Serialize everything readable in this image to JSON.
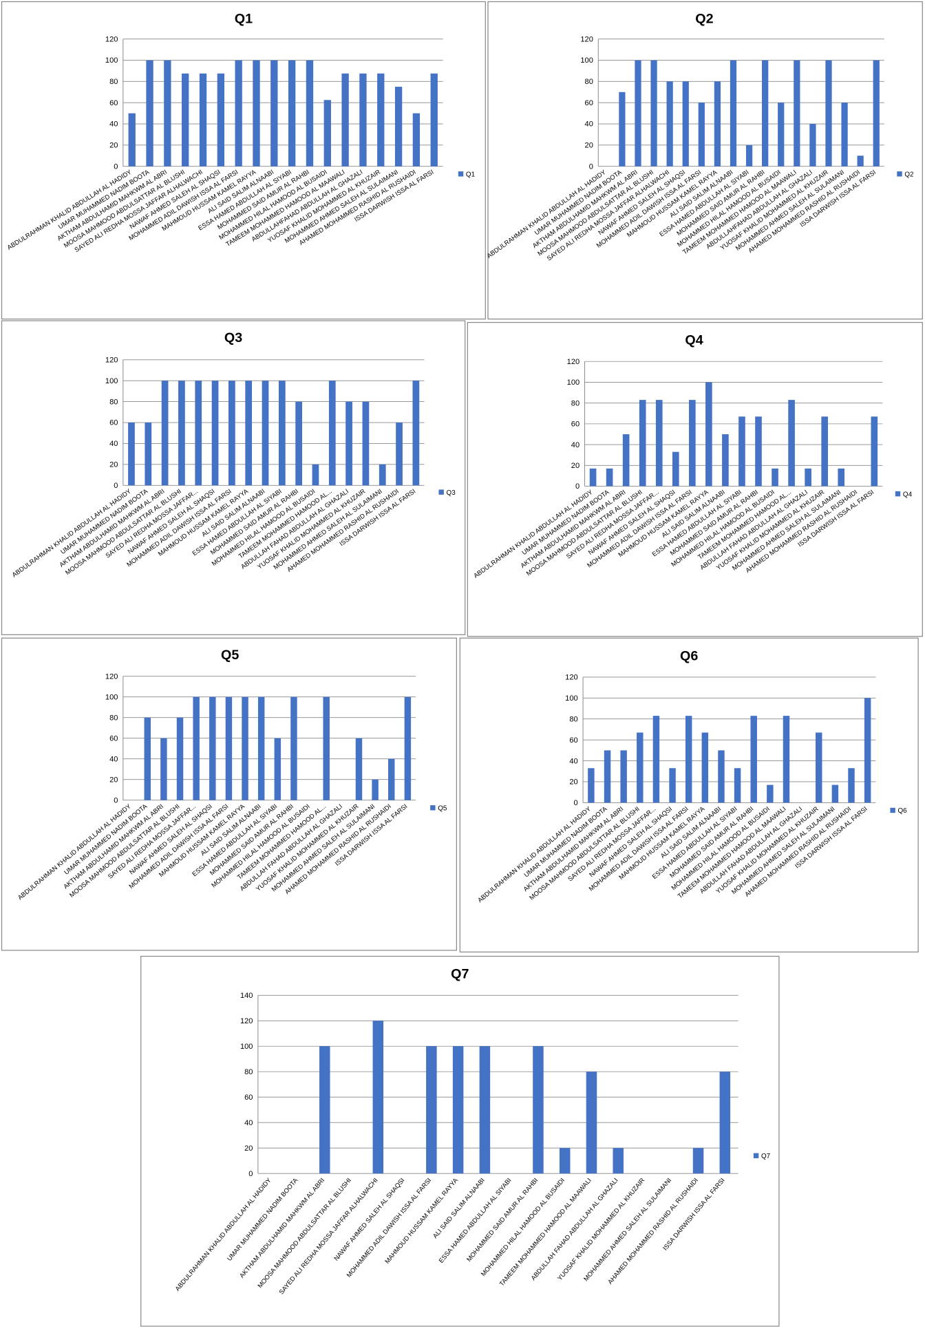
{
  "chart_data": [
    {
      "type": "bar",
      "title": "Q1",
      "categories": [
        "ABDULRAHMAN KHALID ABDULLAH AL HADIDY",
        "UMAR MUHAMMED NADIM BOOTA",
        "AKTHAM ABDULHAMID MAHKWM AL ABRI",
        "MOOSA MAHMOOD ABDULSATTAR AL BLUSHI",
        "SAYED ALI REDHA MOSSA JAFFAR ALHALWACHI",
        "NAWAF AHMED SALEH AL SHAQSI",
        "MOHAMMED ADIL DAWISH ISSA AL FARSI",
        "MAHMOUD HUSSAM KAMEL RAYYA",
        "ALI SAID SALIM ALNAABI",
        "ESSA HAMED ABDULLAH AL SIYABI",
        "MOHAMMED SAID AMUR AL RAHBI",
        "MOHAMMED HILAL HAMOOD AL BUSAIDI",
        "TAMEEM MOHAMMED HAMOOD AL MAAWALI",
        "ABDULLAHFAHAD ABDULLAH AL GHAZALI",
        "YUOSAF KHALID MOHAMMED AL KHUZAIR",
        "MOHAMMED AHMED SALEH AL SULAIMANI",
        "AHAMED MOHAMMED RASHID AL RUSHAIDI",
        "ISSA DARWISH ISSA AL FARSI"
      ],
      "series": [
        {
          "name": "Q1",
          "color": "#4472c4",
          "values": [
            50,
            100,
            100,
            87.5,
            87.5,
            87.5,
            100,
            100,
            100,
            100,
            100,
            62.5,
            87.5,
            87.5,
            87.5,
            75,
            50,
            87.5
          ]
        }
      ],
      "ylim": [
        0,
        120
      ],
      "yticks": [
        0,
        20,
        40,
        60,
        80,
        100,
        120
      ],
      "legend": "right"
    },
    {
      "type": "bar",
      "title": "Q2",
      "categories": [
        "ABDULRAHMAN KHALID ABDULLAH AL HADIDY",
        "UMAR MUHAMMED NADIM BOOTA",
        "AKTHAM ABDULHAMID MAHKWM AL ABRI",
        "MOOSA MAHMOOD ABDULSATTAR AL BLUSHI",
        "SAYED ALI REDHA MOSSA JAFFAR ALHALWACHI",
        "NAWAF AHMED SALEH AL SHAQSI",
        "MOHAMMED ADIL DAWISH ISSA AL FARSI",
        "MAHMOUD HUSSAM KAMEL RAYYA",
        "ALI SAID SALIM ALNAABI",
        "ESSA HAMED ABDULLAH AL SIYABI",
        "MOHAMMED SAID AMUR AL RAHBI",
        "MOHAMMED HILAL HAMOOD AL BUSAIDI",
        "TAMEEM MOHAMMED HAMOOD AL MAAWALI",
        "ABDULLAHFAHAD ABDULLAH AL GHAZALI",
        "YUOSAF KHALID MOHAMMED AL KHUZAIR",
        "MOHAMMED AHMED SALEH AL SULAIMANI",
        "AHAMED MOHAMMED RASHID AL RUSHAIDI",
        "ISSA DARWISH ISSA AL FARSI"
      ],
      "series": [
        {
          "name": "Q2",
          "color": "#4472c4",
          "values": [
            0,
            70,
            100,
            100,
            80,
            80,
            60,
            80,
            100,
            20,
            100,
            60,
            100,
            40,
            100,
            60,
            10,
            100
          ]
        }
      ],
      "ylim": [
        0,
        120
      ],
      "yticks": [
        0,
        20,
        40,
        60,
        80,
        100,
        120
      ],
      "legend": "right"
    },
    {
      "type": "bar",
      "title": "Q3",
      "categories": [
        "ABDULRAHMAN KHALID ABDULLAH AL HADIDY",
        "UMAR MUHAMMED NADIM BOOTA",
        "AKTHAM ABDULHAMID MAHKWM AL ABRI",
        "MOOSA MAHMOOD ABDULSATTAR AL BLUSHI",
        "SAYED ALI REDHA MOSSA JAFFAR...",
        "NAWAF AHMED SALEH AL SHAQSI",
        "MOHAMMED ADIL DAWISH ISSA AL FARSI",
        "MAHMOUD HUSSAM KAMEL RAYYA",
        "ALI SAID SALIM ALNAABI",
        "ESSA HAMED ABDULLAH AL SIYABI",
        "MOHAMMED SAID AMUR AL RAHBI",
        "MOHAMMED HILAL HAMOOD AL BUSAIDI",
        "TAMEEM MOHAMMED HAMOOD AL...",
        "ABDULLAH FAHAD ABDULLAH AL GHAZALI",
        "YUOSAF KHALID MOHAMMED AL KHUZAIR",
        "MOHAMMED AHMED SALEH AL SULAIMANI",
        "AHAMED MOHAMMED RASHID AL RUSHAIDI",
        "ISSA DARWISH ISSA AL FARSI"
      ],
      "series": [
        {
          "name": "Q3",
          "color": "#4472c4",
          "values": [
            60,
            60,
            100,
            100,
            100,
            100,
            100,
            100,
            100,
            100,
            80,
            20,
            100,
            80,
            80,
            20,
            60,
            100
          ]
        }
      ],
      "ylim": [
        0,
        120
      ],
      "yticks": [
        0,
        20,
        40,
        60,
        80,
        100,
        120
      ],
      "legend": "right"
    },
    {
      "type": "bar",
      "title": "Q4",
      "categories": [
        "ABDULRAHMAN KHALID ABDULLAH AL HADIDY",
        "UMAR MUHAMMED NADIM BOOTA",
        "AKTHAM ABDULHAMID MAHKWM AL ABRI",
        "MOOSA MAHMOOD ABDULSATTAR AL BLUSHI",
        "SAYED ALI REDHA MOSSA JAFFAR...",
        "NAWAF AHMED SALEH AL SHAQSI",
        "MOHAMMED ADIL DAWISH ISSA AL FARSI",
        "MAHMOUD HUSSAM KAMEL RAYYA",
        "ALI SAID SALIM ALNAABI",
        "ESSA HAMED ABDULLAH AL SIYABI",
        "MOHAMMED SAID AMUR AL RAHBI",
        "MOHAMMED HILAL HAMOOD AL BUSAIDI",
        "TAMEEM MOHAMMED HAMOOD AL...",
        "ABDULLAH FAHAD ABDULLAH AL GHAZALI",
        "YUOSAF KHALID MOHAMMED AL KHUZAIR",
        "MOHAMMED AHMED SALEH AL SULAIMANI",
        "AHAMED MOHAMMED RASHID AL RUSHAIDI",
        "ISSA DARWISH ISSA AL FARSI"
      ],
      "series": [
        {
          "name": "Q4",
          "color": "#4472c4",
          "values": [
            17,
            17,
            50,
            83,
            83,
            33,
            83,
            100,
            50,
            67,
            67,
            17,
            83,
            17,
            67,
            17,
            0,
            67
          ]
        }
      ],
      "ylim": [
        0,
        120
      ],
      "yticks": [
        0,
        20,
        40,
        60,
        80,
        100,
        120
      ],
      "legend": "right"
    },
    {
      "type": "bar",
      "title": "Q5",
      "categories": [
        "ABDULRAHMAN KHALID ABDULLAH AL HADIDY",
        "UMAR MUHAMMED NADIM BOOTA",
        "AKTHAM ABDULHAMID MAHKWM AL ABRI",
        "MOOSA MAHMOOD ABDULSATTAR AL BLUSHI",
        "SAYED ALI REDHA MOSSA JAFFAR...",
        "NAWAF AHMED SALEH AL SHAQSI",
        "MOHAMMED ADIL DAWISH ISSA AL FARSI",
        "MAHMOUD HUSSAM KAMEL RAYYA",
        "ALI SAID SALIM ALNAABI",
        "ESSA HAMED ABDULLAH AL SIYABI",
        "MOHAMMED SAID AMUR AL RAHBI",
        "MOHAMMED HILAL HAMOOD AL BUSAIDI",
        "TAMEEM MOHAMMED HAMOOD AL...",
        "ABDULLAH FAHAD ABDULLAH AL GHAZALI",
        "YUOSAF KHALID MOHAMMED AL KHUZAIR",
        "MOHAMMED AHMED SALEH AL SULAIMANI",
        "AHAMED MOHAMMED RASHID AL RUSHAIDI",
        "ISSA DARWISH ISSA AL FARSI"
      ],
      "series": [
        {
          "name": "Q5",
          "color": "#4472c4",
          "values": [
            0,
            80,
            60,
            80,
            100,
            100,
            100,
            100,
            100,
            60,
            100,
            0,
            100,
            0,
            60,
            20,
            40,
            100
          ]
        }
      ],
      "ylim": [
        0,
        120
      ],
      "yticks": [
        0,
        20,
        40,
        60,
        80,
        100,
        120
      ],
      "legend": "right"
    },
    {
      "type": "bar",
      "title": "Q6",
      "categories": [
        "ABDULRAHMAN KHALID ABDULLAH AL HADIDY",
        "UMAR MUHAMMED NADIM BOOTA",
        "AKTHAM ABDULHAMID MAHKWM AL ABRI",
        "MOOSA MAHMOOD ABDULSATTAR AL BLUSHI",
        "SAYED ALI REDHA MOSSA JAFFAR...",
        "NAWAF AHMED SALEH AL SHAQSI",
        "MOHAMMED ADIL DAWISH ISSA AL FARSI",
        "MAHMOUD HUSSAM KAMEL RAYYA",
        "ALI SAID SALIM ALNAABI",
        "ESSA HAMED ABDULLAH AL SIYABI",
        "MOHAMMED SAID AMUR AL RAHBI",
        "MOHAMMED HILAL HAMOOD AL BUSAIDI",
        "TAMEEM MOHAMMED HAMOOD AL MAAWALI",
        "ABDULLAH FAHAD ABDULLAH AL GHAZALI",
        "YUOSAF KHALID MOHAMMED AL KHUZAIR",
        "MOHAMMED AHMED SALEH AL SULAIMANI",
        "AHAMED MOHAMMED RASHID AL RUSHAIDI",
        "ISSA DARWISH ISSA AL FARSI"
      ],
      "series": [
        {
          "name": "Q6",
          "color": "#4472c4",
          "values": [
            33,
            50,
            50,
            67,
            83,
            33,
            83,
            67,
            50,
            33,
            83,
            17,
            83,
            0,
            67,
            17,
            33,
            100
          ]
        }
      ],
      "ylim": [
        0,
        120
      ],
      "yticks": [
        0,
        20,
        40,
        60,
        80,
        100,
        120
      ],
      "legend": "right"
    },
    {
      "type": "bar",
      "title": "Q7",
      "categories": [
        "ABDULRAHMAN KHALID ABDULLAH AL HADIDY",
        "UMAR MUHAMMED NADIM BOOTA",
        "AKTHAM ABDULHAMID MAHKWM AL ABRI",
        "MOOSA MAHMOOD ABDULSATTAR AL BLUSHI",
        "SAYED ALI REDHA MOSSA JAFFAR ALHALWACHI",
        "NAWAF AHMED SALEH AL SHAQSI",
        "MOHAMMED ADIL DAWISH ISSA AL FARSI",
        "MAHMOUD HUSSAM KAMEL RAYYA",
        "ALI SAID SALIM ALNAABI",
        "ESSA HAMED ABDULLAH AL SIYABI",
        "MOHAMMED SAID AMUR AL RAHBI",
        "MOHAMMED HILAL HAMOOD AL BUSAIDI",
        "TAMEEM MOHAMMED HAMOOD AL MAAWALI",
        "ABDULLAH FAHAD ABDULLAH AL GHAZALI",
        "YUOSAF KHALID MOHAMMED AL KHUZAIR",
        "MOHAMMED AHMED SALEH AL SULAIMANI",
        "AHAMED MOHAMMED RASHID AL RUSHAIDI",
        "ISSA DARWISH ISSA AL FARSI"
      ],
      "series": [
        {
          "name": "Q7",
          "color": "#4472c4",
          "values": [
            0,
            0,
            100,
            0,
            120,
            0,
            100,
            100,
            100,
            0,
            100,
            20,
            80,
            20,
            0,
            0,
            20,
            80
          ]
        }
      ],
      "ylim": [
        0,
        140
      ],
      "yticks": [
        0,
        20,
        40,
        60,
        80,
        100,
        120,
        140
      ],
      "legend": "right"
    }
  ]
}
